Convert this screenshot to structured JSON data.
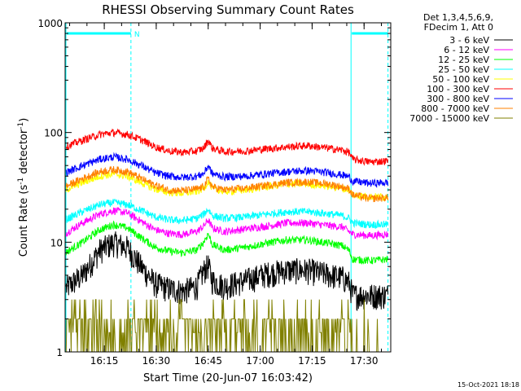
{
  "chart_data": {
    "type": "line",
    "title": "RHESSI Observing Summary Count Rates",
    "xlabel": "Start Time (20-Jun-07 16:03:42)",
    "ylabel_main": "Count Rate (s",
    "ylabel_sup1": "-1",
    "ylabel_mid": " detector",
    "ylabel_sup2": "-1",
    "ylabel_end": ")",
    "yscale": "log",
    "ylim": [
      1,
      1000
    ],
    "x_start_label": "16:03:42",
    "x_range_minutes": [
      0,
      94
    ],
    "x_ticks": [
      {
        "minute": 11.3,
        "label": "16:15"
      },
      {
        "minute": 26.3,
        "label": "16:30"
      },
      {
        "minute": 41.3,
        "label": "16:45"
      },
      {
        "minute": 56.3,
        "label": "17:00"
      },
      {
        "minute": 71.3,
        "label": "17:15"
      },
      {
        "minute": 86.3,
        "label": "17:30"
      }
    ],
    "y_ticks": [
      {
        "value": 1,
        "label": "1"
      },
      {
        "value": 10,
        "label": "10"
      },
      {
        "value": 100,
        "label": "100"
      },
      {
        "value": 1000,
        "label": "1000"
      }
    ],
    "legend_header": [
      "Det 1,3,4,5,6,9,",
      "FDecim 1, Att 0"
    ],
    "legend_position": "top-right outside plot",
    "annotations": {
      "night_marker": "N",
      "intervals": [
        {
          "start_minute": 0,
          "end_minute": 19.0,
          "label": "N"
        },
        {
          "start_minute": 82.3,
          "end_minute": 93.2,
          "label": ""
        }
      ]
    },
    "timestamp": "15-Oct-2021 18:18",
    "series": [
      {
        "name": "3 - 6 keV",
        "color": "#000000",
        "points": [
          [
            0,
            3.8
          ],
          [
            5,
            5
          ],
          [
            10,
            8.5
          ],
          [
            14,
            10
          ],
          [
            18,
            9
          ],
          [
            22,
            6
          ],
          [
            26,
            4.2
          ],
          [
            30,
            3.8
          ],
          [
            34,
            3.6
          ],
          [
            38,
            4
          ],
          [
            40,
            5.5
          ],
          [
            41.3,
            6.2
          ],
          [
            42.5,
            4.5
          ],
          [
            46,
            4
          ],
          [
            52,
            4.5
          ],
          [
            58,
            5.2
          ],
          [
            64,
            5.6
          ],
          [
            70,
            5.6
          ],
          [
            76,
            5.1
          ],
          [
            80,
            4.8
          ],
          [
            82,
            4.3
          ],
          [
            83,
            3.3
          ],
          [
            88,
            3.3
          ],
          [
            93,
            3.3
          ]
        ]
      },
      {
        "name": "6 - 12 keV",
        "color": "#ff00ff",
        "points": [
          [
            0,
            12
          ],
          [
            5,
            15
          ],
          [
            10,
            18
          ],
          [
            14,
            19.5
          ],
          [
            18,
            18.5
          ],
          [
            22,
            15.5
          ],
          [
            26,
            13
          ],
          [
            30,
            12
          ],
          [
            34,
            11.8
          ],
          [
            38,
            12.5
          ],
          [
            40,
            14
          ],
          [
            41.3,
            16
          ],
          [
            42.5,
            13.5
          ],
          [
            46,
            12.5
          ],
          [
            52,
            13.2
          ],
          [
            58,
            14
          ],
          [
            64,
            15
          ],
          [
            70,
            15
          ],
          [
            76,
            14.2
          ],
          [
            80,
            13.8
          ],
          [
            82,
            12.5
          ],
          [
            83,
            11.8
          ],
          [
            88,
            11.5
          ],
          [
            93,
            11.8
          ]
        ]
      },
      {
        "name": "12 - 25 keV",
        "color": "#00ff00",
        "points": [
          [
            0,
            8
          ],
          [
            5,
            10
          ],
          [
            10,
            13
          ],
          [
            14,
            14.5
          ],
          [
            18,
            13.5
          ],
          [
            22,
            11
          ],
          [
            26,
            9
          ],
          [
            30,
            8.3
          ],
          [
            34,
            8
          ],
          [
            38,
            8.5
          ],
          [
            40,
            10
          ],
          [
            41.3,
            12
          ],
          [
            42.5,
            9.5
          ],
          [
            46,
            8.5
          ],
          [
            52,
            9
          ],
          [
            58,
            9.8
          ],
          [
            64,
            10.5
          ],
          [
            70,
            10.5
          ],
          [
            76,
            9.8
          ],
          [
            80,
            9.3
          ],
          [
            82,
            8.4
          ],
          [
            83,
            7
          ],
          [
            88,
            6.8
          ],
          [
            93,
            7
          ]
        ]
      },
      {
        "name": "25 - 50 keV",
        "color": "#00ffff",
        "points": [
          [
            0,
            16
          ],
          [
            5,
            19
          ],
          [
            10,
            22
          ],
          [
            14,
            23
          ],
          [
            18,
            22
          ],
          [
            22,
            19.5
          ],
          [
            26,
            17
          ],
          [
            30,
            16
          ],
          [
            34,
            15.8
          ],
          [
            38,
            16.5
          ],
          [
            40,
            18
          ],
          [
            41.3,
            20
          ],
          [
            42.5,
            17.5
          ],
          [
            46,
            16.5
          ],
          [
            52,
            17
          ],
          [
            58,
            18
          ],
          [
            64,
            19
          ],
          [
            70,
            19
          ],
          [
            76,
            18.2
          ],
          [
            80,
            17.5
          ],
          [
            82,
            16.5
          ],
          [
            83,
            15
          ],
          [
            88,
            14.5
          ],
          [
            93,
            14.5
          ]
        ]
      },
      {
        "name": "50 - 100 keV",
        "color": "#ffff00",
        "points": [
          [
            0,
            30
          ],
          [
            5,
            35
          ],
          [
            10,
            40
          ],
          [
            14,
            42
          ],
          [
            18,
            40
          ],
          [
            22,
            35
          ],
          [
            26,
            30.5
          ],
          [
            30,
            28.5
          ],
          [
            34,
            28
          ],
          [
            38,
            29
          ],
          [
            40,
            31
          ],
          [
            41.3,
            36
          ],
          [
            42.5,
            31
          ],
          [
            46,
            29
          ],
          [
            52,
            30
          ],
          [
            58,
            32
          ],
          [
            64,
            34
          ],
          [
            70,
            34
          ],
          [
            76,
            32.5
          ],
          [
            80,
            31
          ],
          [
            82,
            30
          ],
          [
            83,
            27
          ],
          [
            88,
            26
          ],
          [
            93,
            26
          ]
        ]
      },
      {
        "name": "100 - 300 keV",
        "color": "#ff0000",
        "points": [
          [
            0,
            74
          ],
          [
            5,
            85
          ],
          [
            10,
            96
          ],
          [
            14,
            100
          ],
          [
            18,
            96
          ],
          [
            22,
            86
          ],
          [
            26,
            74
          ],
          [
            30,
            68
          ],
          [
            34,
            66
          ],
          [
            38,
            68
          ],
          [
            40,
            72
          ],
          [
            41.3,
            85
          ],
          [
            42.5,
            72
          ],
          [
            46,
            67
          ],
          [
            52,
            68
          ],
          [
            58,
            71
          ],
          [
            64,
            74
          ],
          [
            70,
            76
          ],
          [
            76,
            72
          ],
          [
            80,
            69
          ],
          [
            82,
            66
          ],
          [
            83,
            57
          ],
          [
            88,
            54
          ],
          [
            93,
            55
          ]
        ]
      },
      {
        "name": "300 - 800 keV",
        "color": "#0000ff",
        "points": [
          [
            0,
            43
          ],
          [
            5,
            50
          ],
          [
            10,
            57
          ],
          [
            14,
            60
          ],
          [
            18,
            57
          ],
          [
            22,
            50
          ],
          [
            26,
            43
          ],
          [
            30,
            40
          ],
          [
            34,
            39
          ],
          [
            38,
            40
          ],
          [
            40,
            42
          ],
          [
            41.3,
            50
          ],
          [
            42.5,
            42
          ],
          [
            46,
            39.5
          ],
          [
            52,
            40
          ],
          [
            58,
            42
          ],
          [
            64,
            44
          ],
          [
            70,
            45
          ],
          [
            76,
            43
          ],
          [
            80,
            41
          ],
          [
            82,
            39.5
          ],
          [
            83,
            36
          ],
          [
            88,
            34.5
          ],
          [
            93,
            35
          ]
        ]
      },
      {
        "name": "800 - 7000 keV",
        "color": "#ff8000",
        "points": [
          [
            0,
            32
          ],
          [
            5,
            38
          ],
          [
            10,
            44
          ],
          [
            14,
            46
          ],
          [
            18,
            44
          ],
          [
            22,
            38
          ],
          [
            26,
            33
          ],
          [
            30,
            30
          ],
          [
            34,
            29.5
          ],
          [
            38,
            30.5
          ],
          [
            40,
            32
          ],
          [
            41.3,
            38
          ],
          [
            42.5,
            32
          ],
          [
            46,
            30
          ],
          [
            52,
            31
          ],
          [
            58,
            33
          ],
          [
            64,
            35
          ],
          [
            70,
            35.5
          ],
          [
            76,
            34
          ],
          [
            80,
            32
          ],
          [
            82,
            30.5
          ],
          [
            83,
            27
          ],
          [
            88,
            25
          ],
          [
            93,
            25.5
          ]
        ]
      },
      {
        "name": "7000 - 15000 keV",
        "color": "#808000",
        "points": [
          [
            0,
            1.8
          ],
          [
            5,
            2
          ],
          [
            10,
            2.5
          ],
          [
            14,
            3
          ],
          [
            18,
            2.5
          ],
          [
            22,
            2
          ],
          [
            26,
            1.5
          ],
          [
            30,
            1.2
          ],
          [
            34,
            1.1
          ],
          [
            38,
            1.3
          ],
          [
            40,
            1.8
          ],
          [
            41.3,
            2
          ],
          [
            42.5,
            1.5
          ],
          [
            46,
            1.4
          ],
          [
            52,
            1.8
          ],
          [
            58,
            2
          ],
          [
            64,
            2
          ],
          [
            70,
            2
          ],
          [
            76,
            2
          ],
          [
            80,
            1.8
          ],
          [
            82,
            1.6
          ],
          [
            83,
            1.3
          ],
          [
            88,
            1.2
          ],
          [
            93,
            1.2
          ]
        ]
      }
    ]
  }
}
